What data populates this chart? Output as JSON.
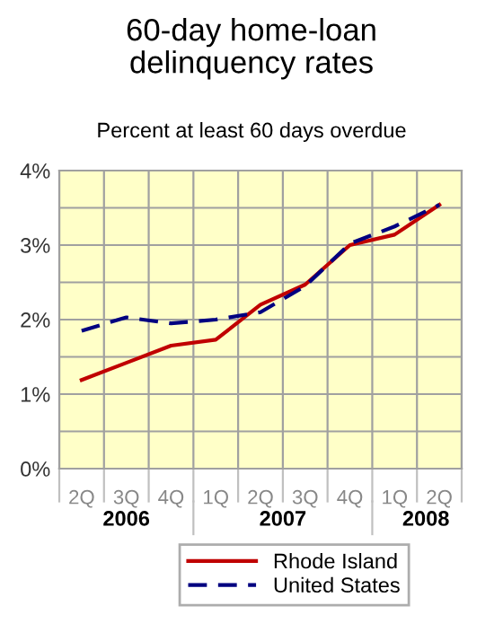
{
  "chart_data": {
    "type": "line",
    "title": "60-day home-loan\ndelinquency rates",
    "subtitle": "Percent at least 60 days overdue",
    "categories": [
      "2Q",
      "3Q",
      "4Q",
      "1Q",
      "2Q",
      "3Q",
      "4Q",
      "1Q",
      "2Q"
    ],
    "series": [
      {
        "name": "Rhode Island",
        "color": "#c00000",
        "line_style": "solid",
        "values": [
          1.19,
          1.42,
          1.65,
          1.73,
          2.2,
          2.47,
          3.0,
          3.14,
          3.54
        ]
      },
      {
        "name": "United States",
        "color": "#000080",
        "line_style": "dashed",
        "values": [
          1.85,
          2.03,
          1.95,
          2.0,
          2.1,
          2.45,
          3.02,
          3.25,
          3.54
        ]
      }
    ],
    "ylim": [
      0,
      4
    ],
    "yticks": [
      {
        "value": 0,
        "label": "0%"
      },
      {
        "value": 0.5,
        "label": null
      },
      {
        "value": 1,
        "label": "1%"
      },
      {
        "value": 1.5,
        "label": null
      },
      {
        "value": 2,
        "label": "2%"
      },
      {
        "value": 2.5,
        "label": null
      },
      {
        "value": 3,
        "label": "3%"
      },
      {
        "value": 3.5,
        "label": null
      },
      {
        "value": 4,
        "label": "4%"
      }
    ],
    "grid": true,
    "legend": "bottom",
    "marker": "none",
    "annotations": [
      "2006",
      "2007",
      "2008"
    ]
  }
}
